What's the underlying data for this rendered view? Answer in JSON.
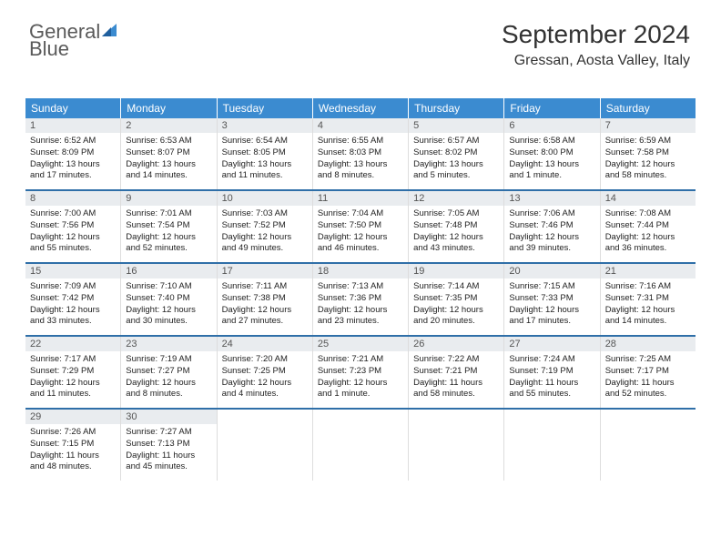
{
  "brand": {
    "word1": "General",
    "word2": "Blue"
  },
  "title": "September 2024",
  "location": "Gressan, Aosta Valley, Italy",
  "colors": {
    "header_bg": "#3b8bd0",
    "header_text": "#ffffff",
    "daynum_bg": "#e9ecef",
    "rule": "#2f6fa8",
    "brand_gray": "#5a5a5a",
    "brand_blue": "#3b8bd0"
  },
  "day_names": [
    "Sunday",
    "Monday",
    "Tuesday",
    "Wednesday",
    "Thursday",
    "Friday",
    "Saturday"
  ],
  "weeks": [
    [
      {
        "n": "1",
        "sr": "6:52 AM",
        "ss": "8:09 PM",
        "dl": "13 hours and 17 minutes."
      },
      {
        "n": "2",
        "sr": "6:53 AM",
        "ss": "8:07 PM",
        "dl": "13 hours and 14 minutes."
      },
      {
        "n": "3",
        "sr": "6:54 AM",
        "ss": "8:05 PM",
        "dl": "13 hours and 11 minutes."
      },
      {
        "n": "4",
        "sr": "6:55 AM",
        "ss": "8:03 PM",
        "dl": "13 hours and 8 minutes."
      },
      {
        "n": "5",
        "sr": "6:57 AM",
        "ss": "8:02 PM",
        "dl": "13 hours and 5 minutes."
      },
      {
        "n": "6",
        "sr": "6:58 AM",
        "ss": "8:00 PM",
        "dl": "13 hours and 1 minute."
      },
      {
        "n": "7",
        "sr": "6:59 AM",
        "ss": "7:58 PM",
        "dl": "12 hours and 58 minutes."
      }
    ],
    [
      {
        "n": "8",
        "sr": "7:00 AM",
        "ss": "7:56 PM",
        "dl": "12 hours and 55 minutes."
      },
      {
        "n": "9",
        "sr": "7:01 AM",
        "ss": "7:54 PM",
        "dl": "12 hours and 52 minutes."
      },
      {
        "n": "10",
        "sr": "7:03 AM",
        "ss": "7:52 PM",
        "dl": "12 hours and 49 minutes."
      },
      {
        "n": "11",
        "sr": "7:04 AM",
        "ss": "7:50 PM",
        "dl": "12 hours and 46 minutes."
      },
      {
        "n": "12",
        "sr": "7:05 AM",
        "ss": "7:48 PM",
        "dl": "12 hours and 43 minutes."
      },
      {
        "n": "13",
        "sr": "7:06 AM",
        "ss": "7:46 PM",
        "dl": "12 hours and 39 minutes."
      },
      {
        "n": "14",
        "sr": "7:08 AM",
        "ss": "7:44 PM",
        "dl": "12 hours and 36 minutes."
      }
    ],
    [
      {
        "n": "15",
        "sr": "7:09 AM",
        "ss": "7:42 PM",
        "dl": "12 hours and 33 minutes."
      },
      {
        "n": "16",
        "sr": "7:10 AM",
        "ss": "7:40 PM",
        "dl": "12 hours and 30 minutes."
      },
      {
        "n": "17",
        "sr": "7:11 AM",
        "ss": "7:38 PM",
        "dl": "12 hours and 27 minutes."
      },
      {
        "n": "18",
        "sr": "7:13 AM",
        "ss": "7:36 PM",
        "dl": "12 hours and 23 minutes."
      },
      {
        "n": "19",
        "sr": "7:14 AM",
        "ss": "7:35 PM",
        "dl": "12 hours and 20 minutes."
      },
      {
        "n": "20",
        "sr": "7:15 AM",
        "ss": "7:33 PM",
        "dl": "12 hours and 17 minutes."
      },
      {
        "n": "21",
        "sr": "7:16 AM",
        "ss": "7:31 PM",
        "dl": "12 hours and 14 minutes."
      }
    ],
    [
      {
        "n": "22",
        "sr": "7:17 AM",
        "ss": "7:29 PM",
        "dl": "12 hours and 11 minutes."
      },
      {
        "n": "23",
        "sr": "7:19 AM",
        "ss": "7:27 PM",
        "dl": "12 hours and 8 minutes."
      },
      {
        "n": "24",
        "sr": "7:20 AM",
        "ss": "7:25 PM",
        "dl": "12 hours and 4 minutes."
      },
      {
        "n": "25",
        "sr": "7:21 AM",
        "ss": "7:23 PM",
        "dl": "12 hours and 1 minute."
      },
      {
        "n": "26",
        "sr": "7:22 AM",
        "ss": "7:21 PM",
        "dl": "11 hours and 58 minutes."
      },
      {
        "n": "27",
        "sr": "7:24 AM",
        "ss": "7:19 PM",
        "dl": "11 hours and 55 minutes."
      },
      {
        "n": "28",
        "sr": "7:25 AM",
        "ss": "7:17 PM",
        "dl": "11 hours and 52 minutes."
      }
    ],
    [
      {
        "n": "29",
        "sr": "7:26 AM",
        "ss": "7:15 PM",
        "dl": "11 hours and 48 minutes."
      },
      {
        "n": "30",
        "sr": "7:27 AM",
        "ss": "7:13 PM",
        "dl": "11 hours and 45 minutes."
      },
      null,
      null,
      null,
      null,
      null
    ]
  ],
  "labels": {
    "sunrise": "Sunrise:",
    "sunset": "Sunset:",
    "daylight": "Daylight:"
  }
}
